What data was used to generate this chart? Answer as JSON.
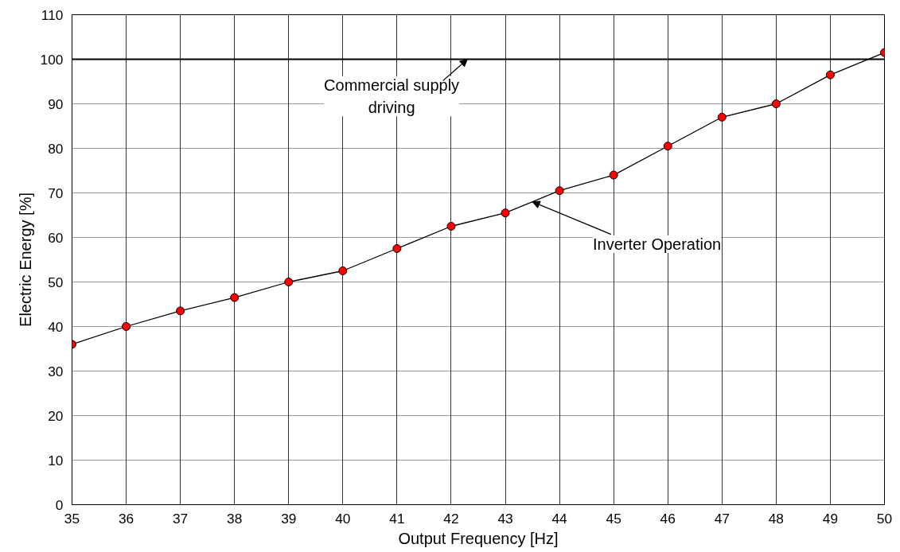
{
  "chart_data": {
    "type": "line",
    "xlabel": "Output Frequency [Hz]",
    "ylabel": "Electric Energy [%]",
    "x": [
      35,
      36,
      37,
      38,
      39,
      40,
      41,
      42,
      43,
      44,
      45,
      46,
      47,
      48,
      49,
      50
    ],
    "series": [
      {
        "color": "#000000",
        "values": [
          36,
          40,
          43.5,
          46.5,
          50,
          52.5,
          57.5,
          62.5,
          65.5,
          70.5,
          74,
          80.5,
          87,
          90,
          96.5,
          101.5
        ]
      }
    ],
    "marker": "circle",
    "line_style": "solid",
    "xlim": [
      35,
      50
    ],
    "xticks": [
      35,
      36,
      37,
      38,
      39,
      40,
      41,
      42,
      43,
      44,
      45,
      46,
      47,
      48,
      49,
      50
    ],
    "ylim": [
      0,
      110
    ],
    "yticks": [
      0,
      10,
      20,
      30,
      40,
      50,
      60,
      70,
      80,
      90,
      100,
      110
    ],
    "grid": true,
    "ref_lines": [
      {
        "axis": "y",
        "value": 100,
        "color": "#000000"
      }
    ],
    "annotations": [
      {
        "text": "Commercial supply\ndriving",
        "x": 42.3,
        "y": 100
      },
      {
        "text": "Inverter Operation",
        "x": 43.5,
        "y": 68
      }
    ]
  }
}
